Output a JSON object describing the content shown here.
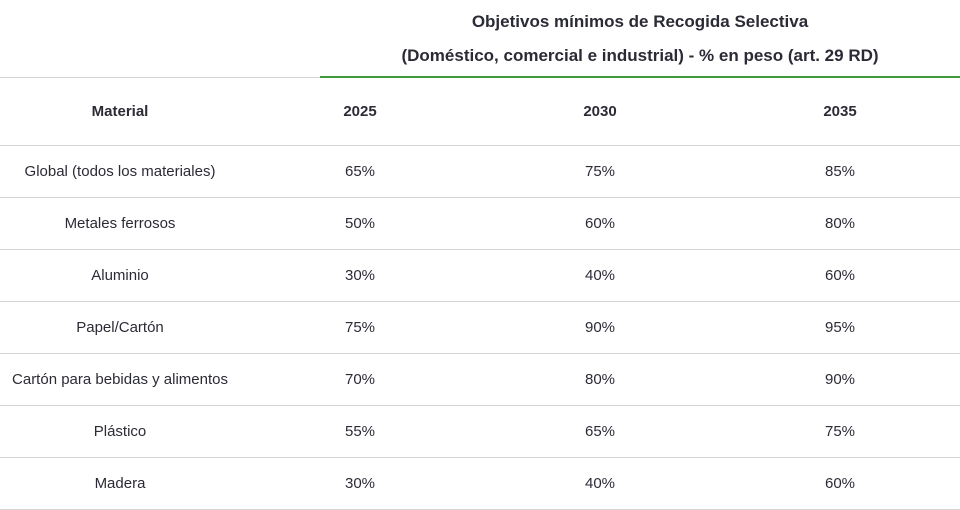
{
  "group_header": {
    "line1": "Objetivos mínimos de Recogida Selectiva",
    "line2": "(Doméstico, comercial e industrial) - % en peso (art. 29 RD)"
  },
  "columns": [
    "Material",
    "2025",
    "2030",
    "2035"
  ],
  "rows": [
    [
      "Global (todos los materiales)",
      "65%",
      "75%",
      "85%"
    ],
    [
      "Metales ferrosos",
      "50%",
      "60%",
      "80%"
    ],
    [
      "Aluminio",
      "30%",
      "40%",
      "60%"
    ],
    [
      "Papel/Cartón",
      "75%",
      "90%",
      "95%"
    ],
    [
      "Cartón para bebidas y alimentos",
      "70%",
      "80%",
      "90%"
    ],
    [
      "Plástico",
      "55%",
      "65%",
      "75%"
    ],
    [
      "Madera",
      "30%",
      "40%",
      "60%"
    ]
  ],
  "colors": {
    "accent_rule": "#3f9a3b",
    "divider": "#d4d4d4",
    "text": "#2b2b36"
  }
}
